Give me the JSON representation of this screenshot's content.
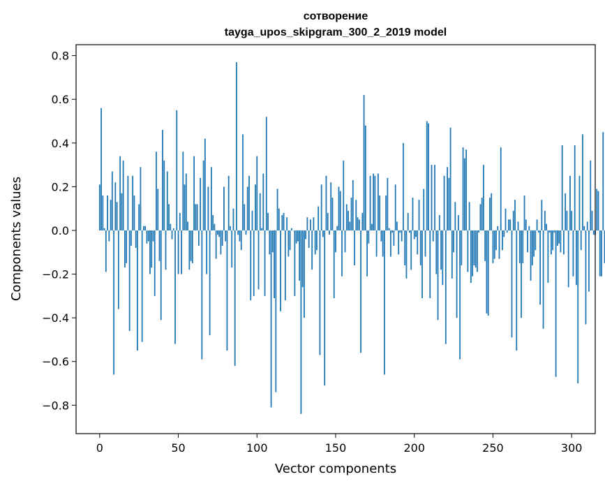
{
  "chart_data": {
    "type": "bar",
    "title": "сотворение",
    "subtitle": "tayga_upos_skipgram_300_2_2019 model",
    "xlabel": "Vector components",
    "ylabel": "Components values",
    "xlim": [
      -15,
      315
    ],
    "ylim": [
      -0.93,
      0.85
    ],
    "xticks": [
      0,
      50,
      100,
      150,
      200,
      250,
      300
    ],
    "yticks": [
      -0.8,
      -0.6,
      -0.4,
      -0.2,
      0.0,
      0.2,
      0.4,
      0.6,
      0.8
    ],
    "ytick_labels": [
      "−0.8",
      "−0.6",
      "−0.4",
      "−0.2",
      "0.0",
      "0.2",
      "0.4",
      "0.6",
      "0.8"
    ],
    "bar_color": "#1f77b4",
    "grid": false,
    "legend": "none",
    "values": [
      0.21,
      0.56,
      0.16,
      0.01,
      -0.19,
      0.16,
      -0.05,
      0.14,
      0.27,
      -0.66,
      0.22,
      0.13,
      -0.36,
      0.34,
      0.17,
      0.32,
      -0.17,
      -0.15,
      0.25,
      -0.46,
      -0.07,
      0.25,
      0.16,
      -0.08,
      -0.55,
      0.12,
      0.29,
      -0.51,
      0.02,
      0.02,
      -0.06,
      -0.05,
      -0.2,
      -0.17,
      -0.05,
      -0.3,
      0.36,
      0.19,
      -0.14,
      -0.41,
      0.46,
      0.32,
      -0.18,
      0.27,
      0.12,
      0.03,
      -0.04,
      0.01,
      -0.52,
      0.55,
      -0.2,
      0.08,
      -0.2,
      0.36,
      0.21,
      0.26,
      0.04,
      -0.18,
      -0.14,
      -0.15,
      0.34,
      0.12,
      0.12,
      -0.07,
      0.24,
      -0.59,
      0.32,
      0.42,
      -0.2,
      0.2,
      -0.48,
      0.29,
      0.07,
      0.03,
      -0.13,
      -0.02,
      -0.03,
      -0.11,
      -0.07,
      0.2,
      -0.05,
      -0.55,
      0.25,
      0.02,
      -0.17,
      0.1,
      -0.62,
      0.77,
      -0.02,
      -0.05,
      -0.09,
      0.44,
      0.12,
      -0.02,
      0.2,
      0.25,
      -0.32,
      0.09,
      -0.3,
      0.21,
      0.34,
      -0.27,
      0.17,
      0.01,
      0.26,
      -0.3,
      0.52,
      0.08,
      -0.11,
      -0.81,
      -0.1,
      -0.31,
      -0.74,
      0.19,
      0.1,
      -0.37,
      0.07,
      0.08,
      -0.32,
      0.06,
      -0.12,
      -0.09,
      0.01,
      0.0,
      -0.3,
      -0.06,
      -0.05,
      -0.23,
      -0.84,
      -0.26,
      -0.4,
      -0.04,
      0.06,
      -0.08,
      0.05,
      -0.18,
      0.06,
      -0.11,
      -0.09,
      0.11,
      -0.57,
      0.21,
      -0.03,
      -0.71,
      0.25,
      0.08,
      -0.02,
      0.22,
      0.15,
      -0.31,
      -0.1,
      0.02,
      0.2,
      0.18,
      -0.21,
      0.32,
      -0.1,
      0.12,
      0.09,
      0.04,
      0.15,
      0.23,
      -0.16,
      0.14,
      0.06,
      0.05,
      -0.56,
      0.08,
      0.62,
      0.48,
      -0.21,
      -0.06,
      0.25,
      0.03,
      0.26,
      0.25,
      -0.12,
      0.26,
      0.16,
      -0.05,
      -0.12,
      -0.66,
      0.16,
      0.24,
      0.01,
      -0.12,
      -0.01,
      -0.07,
      0.21,
      0.04,
      -0.11,
      -0.01,
      -0.05,
      0.4,
      -0.16,
      -0.22,
      0.08,
      -0.01,
      -0.18,
      0.15,
      -0.04,
      -0.03,
      -0.11,
      0.14,
      -0.16,
      -0.31,
      0.19,
      -0.12,
      0.5,
      0.49,
      -0.31,
      0.3,
      -0.05,
      0.3,
      -0.2,
      -0.41,
      0.07,
      -0.18,
      -0.25,
      0.25,
      -0.52,
      0.29,
      0.24,
      0.47,
      -0.22,
      -0.1,
      0.13,
      -0.4,
      0.07,
      -0.59,
      -0.16,
      0.38,
      0.33,
      0.37,
      -0.19,
      0.13,
      -0.24,
      -0.21,
      -0.16,
      -0.17,
      -0.19,
      -0.01,
      0.12,
      0.15,
      0.3,
      -0.14,
      -0.38,
      -0.39,
      0.15,
      0.17,
      -0.15,
      -0.13,
      -0.09,
      0.02,
      -0.13,
      0.38,
      -0.09,
      -0.03,
      0.1,
      -0.01,
      0.05,
      0.05,
      -0.49,
      0.09,
      0.14,
      -0.55,
      0.04,
      -0.15,
      -0.4,
      -0.15,
      0.16,
      0.05,
      -0.1,
      0.02,
      -0.23,
      -0.16,
      -0.12,
      -0.09,
      0.05,
      -0.01,
      -0.34,
      0.14,
      -0.45,
      0.09,
      0.03,
      -0.24,
      -0.01,
      -0.11,
      -0.09,
      -0.01,
      -0.67,
      -0.07,
      -0.06,
      -0.1,
      0.39,
      -0.11,
      0.17,
      0.09,
      -0.26,
      0.25,
      0.09,
      -0.21,
      0.39,
      -0.25,
      -0.7,
      0.25,
      -0.09,
      0.44,
      0.02,
      -0.43,
      0.04,
      -0.28,
      0.32,
      0.09,
      -0.02,
      -0.02,
      0.19,
      0.18,
      -0.21,
      -0.21,
      0.45,
      -0.15,
      -0.14
    ]
  }
}
